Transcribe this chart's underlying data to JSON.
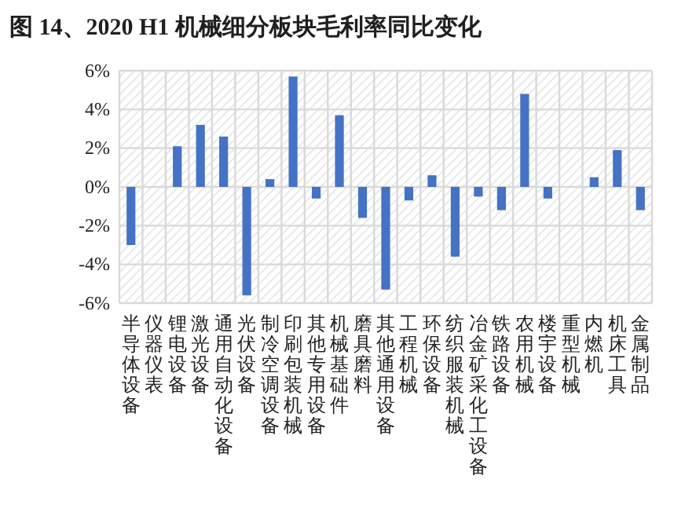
{
  "chart_data": {
    "type": "bar",
    "title": "图 14、2020 H1 机械细分板块毛利率同比变化",
    "categories": [
      "半导体设备",
      "仪器仪表",
      "锂电设备",
      "激光设备",
      "通用自动化设备",
      "光伏设备",
      "制冷空调设备",
      "印刷包装机械",
      "其他专用设备",
      "机械基础件",
      "磨具磨料",
      "其他通用设备",
      "工程机械",
      "环保设备",
      "纺织服装机械",
      "冶金矿采化工设备",
      "铁路设备",
      "农用机械",
      "楼宇设备",
      "重型机械",
      "内燃机",
      "机床工具",
      "金属制品"
    ],
    "values": [
      -3.0,
      0,
      2.1,
      3.2,
      2.6,
      -5.6,
      0.4,
      5.7,
      -0.6,
      3.7,
      -1.6,
      -5.3,
      -0.7,
      0.6,
      -3.6,
      -0.5,
      -1.2,
      4.8,
      -0.6,
      0,
      0.5,
      1.9,
      -1.2
    ],
    "color": "#4472c4",
    "ylim": [
      -6,
      6
    ],
    "yticks": [
      {
        "value": -6,
        "label": "-6%"
      },
      {
        "value": -4,
        "label": "-4%"
      },
      {
        "value": -2,
        "label": "-2%"
      },
      {
        "value": 0,
        "label": "0%"
      },
      {
        "value": 2,
        "label": "2%"
      },
      {
        "value": 4,
        "label": "4%"
      },
      {
        "value": 6,
        "label": "6%"
      }
    ],
    "grid": true
  }
}
